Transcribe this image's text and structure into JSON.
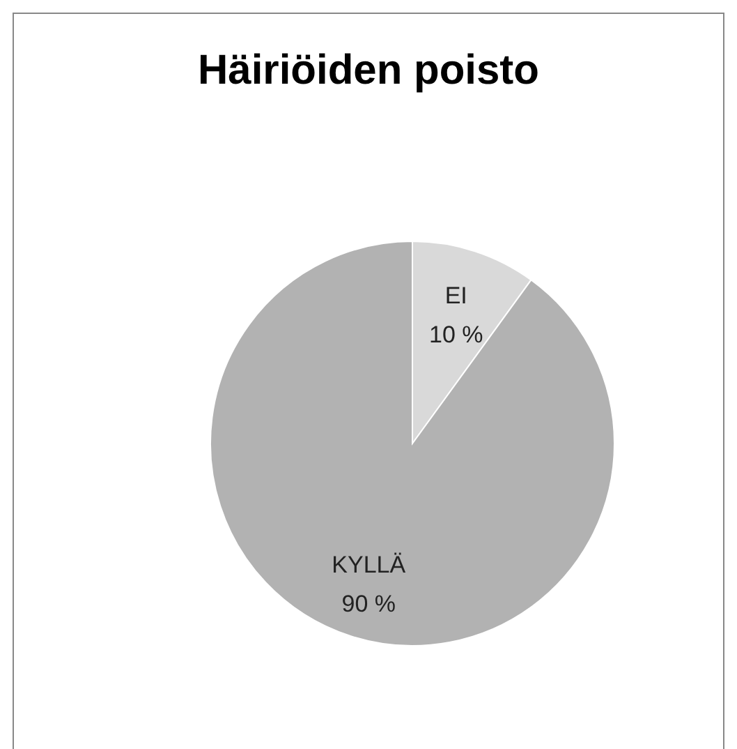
{
  "chart_data": {
    "type": "pie",
    "title": "Häiriöiden poisto",
    "categories": [
      "EI",
      "KYLLÄ"
    ],
    "values": [
      10,
      90
    ],
    "colors": [
      "#d9d9d9",
      "#b2b2b2"
    ],
    "value_labels": [
      "10 %",
      "90 %"
    ],
    "legend": false
  }
}
